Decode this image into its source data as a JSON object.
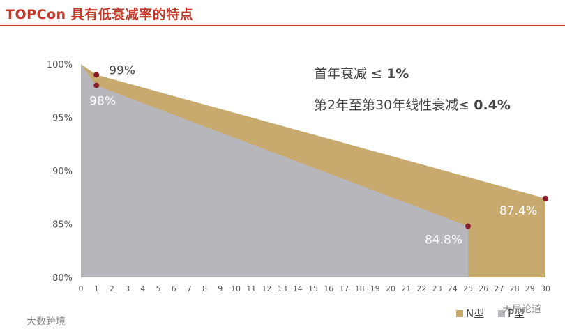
{
  "header": {
    "title": "TOPCon 具有低衰减率的特点"
  },
  "chart_data": {
    "type": "area",
    "x": [
      0,
      1,
      2,
      3,
      4,
      5,
      6,
      7,
      8,
      9,
      10,
      11,
      12,
      13,
      14,
      15,
      16,
      17,
      18,
      19,
      20,
      21,
      22,
      23,
      24,
      25,
      26,
      27,
      28,
      29,
      30
    ],
    "xlim": [
      0,
      30
    ],
    "ylim": [
      80,
      100
    ],
    "yticks": [
      "100%",
      "95%",
      "90%",
      "85%",
      "80%"
    ],
    "ytick_values": [
      100,
      95,
      90,
      85,
      80
    ],
    "series": [
      {
        "name": "N型",
        "color": "#c8a96e",
        "points": [
          [
            0,
            100
          ],
          [
            1,
            99
          ],
          [
            30,
            87.4
          ]
        ]
      },
      {
        "name": "P型",
        "color": "#b7b7bb",
        "points": [
          [
            0,
            100
          ],
          [
            1,
            98
          ],
          [
            25,
            84.8
          ]
        ]
      }
    ],
    "markers": [
      {
        "x": 1,
        "y": 99,
        "label": "99%",
        "label_color": "#444444"
      },
      {
        "x": 1,
        "y": 98,
        "label": "98%",
        "label_color": "#ffffff"
      },
      {
        "x": 25,
        "y": 84.8,
        "label": "84.8%",
        "label_color": "#ffffff"
      },
      {
        "x": 30,
        "y": 87.4,
        "label": "87.4%",
        "label_color": "#ffffff"
      }
    ],
    "marker_color": "#8b1e2b",
    "annotations": [
      {
        "text": "首年衰减 ≤ ",
        "bold": "1%"
      },
      {
        "text": "第2年至第30年线性衰减≤ ",
        "bold": "0.4%"
      }
    ],
    "legend": [
      "N型",
      "P型"
    ],
    "legend_placement": "bottom-right",
    "grid": false
  },
  "watermarks": {
    "left": "大数跨境",
    "right": "天局论道"
  }
}
